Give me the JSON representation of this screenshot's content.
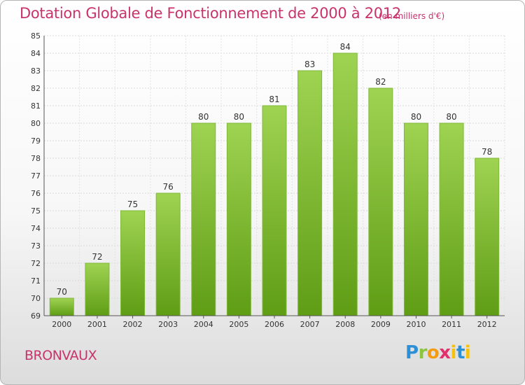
{
  "header": {
    "title": "Dotation Globale de Fonctionnement de 2000 à 2012",
    "unit": "(en milliers d'€)"
  },
  "footer": {
    "commune": "BRONVAUX",
    "logo_text": "Proxiti"
  },
  "colors": {
    "accent": "#c8336b",
    "bar_top": "#9fd352",
    "bar_bottom": "#5f9d15"
  },
  "chart_data": {
    "type": "bar",
    "title": "Dotation Globale de Fonctionnement de 2000 à 2012",
    "subtitle": "(en milliers d'€)",
    "xlabel": "",
    "ylabel": "",
    "categories": [
      "2000",
      "2001",
      "2002",
      "2003",
      "2004",
      "2005",
      "2006",
      "2007",
      "2008",
      "2009",
      "2010",
      "2011",
      "2012"
    ],
    "values": [
      70,
      72,
      75,
      76,
      80,
      80,
      81,
      83,
      84,
      82,
      80,
      80,
      78
    ],
    "ylim": [
      69,
      85
    ],
    "yticks": [
      69,
      70,
      71,
      72,
      73,
      74,
      75,
      76,
      77,
      78,
      79,
      80,
      81,
      82,
      83,
      84,
      85
    ],
    "grid": true,
    "legend": "none"
  }
}
